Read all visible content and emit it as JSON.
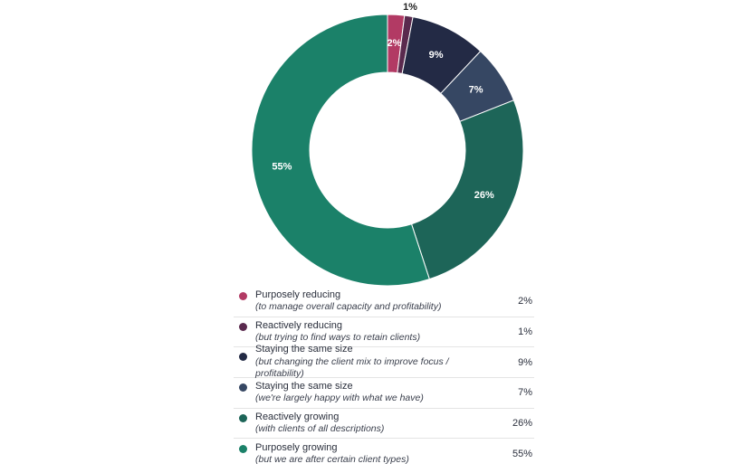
{
  "chart_data": {
    "type": "pie",
    "donut": true,
    "categories": [
      "Purposely reducing",
      "Reactively reducing",
      "Staying the same size",
      "Staying the same size",
      "Reactively growing",
      "Purposely growing"
    ],
    "descriptions": [
      "(to manage overall capacity and profitability)",
      "(but trying to find ways to retain clients)",
      "(but changing the client mix to improve focus / profitability)",
      "(we're largely happy with what we have)",
      "(with clients of all descriptions)",
      "(but we are after certain client types)"
    ],
    "values": [
      2,
      1,
      9,
      7,
      26,
      55
    ],
    "value_labels": [
      "2%",
      "1%",
      "9%",
      "7%",
      "26%",
      "55%"
    ],
    "colors": [
      "#b23a64",
      "#5a2a4e",
      "#232a45",
      "#364763",
      "#1d6558",
      "#1b8169"
    ],
    "label_colors": [
      "#ffffff",
      "#222222",
      "#ffffff",
      "#ffffff",
      "#ffffff",
      "#ffffff"
    ],
    "legend_placement": "bottom"
  }
}
